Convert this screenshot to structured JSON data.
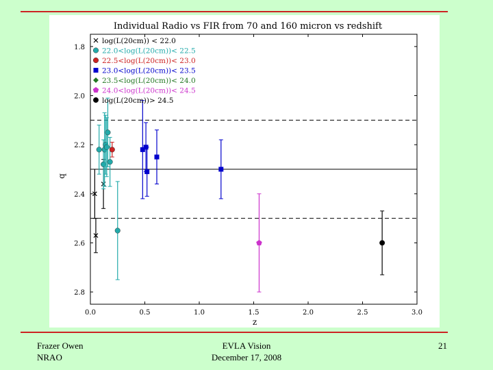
{
  "footer": {
    "author": "Frazer Owen",
    "org": "NRAO",
    "talk": "EVLA Vision",
    "date": "December 17, 2008",
    "page": "21"
  },
  "colors": {
    "rule": "#cc2222",
    "background": "#ccffcc"
  },
  "chart_data": {
    "type": "scatter",
    "title": "Individual Radio vs FIR from 70 and 160 micron vs redshift",
    "xlabel": "z",
    "ylabel": "q",
    "xlim": [
      0.0,
      3.0
    ],
    "ylim": [
      2.85,
      1.75
    ],
    "y_inverted": true,
    "xticks": [
      "0.0",
      "0.5",
      "1.0",
      "1.5",
      "2.0",
      "2.5",
      "3.0"
    ],
    "yticks": [
      "1.8",
      "2.0",
      "2.2",
      "2.4",
      "2.6",
      "2.8"
    ],
    "grid": false,
    "legend_position": "top-left",
    "reference_lines": [
      {
        "y": 2.3,
        "style": "solid"
      },
      {
        "y": 2.1,
        "style": "dashed"
      },
      {
        "y": 2.5,
        "style": "dashed"
      }
    ],
    "series": [
      {
        "name": "log(L(20cm)) < 22.0",
        "color": "#000000",
        "marker": "x",
        "points": [
          {
            "x": 0.04,
            "y": 2.4,
            "err": 0.1
          },
          {
            "x": 0.05,
            "y": 2.57,
            "err": 0.07
          },
          {
            "x": 0.12,
            "y": 2.36,
            "err": 0.1
          }
        ]
      },
      {
        "name": "22.0<log(L(20cm))< 22.5",
        "color": "#22aaaa",
        "marker": "circle",
        "points": [
          {
            "x": 0.08,
            "y": 2.22,
            "err": 0.1
          },
          {
            "x": 0.12,
            "y": 2.28,
            "err": 0.1
          },
          {
            "x": 0.13,
            "y": 2.22,
            "err": 0.15
          },
          {
            "x": 0.14,
            "y": 2.2,
            "err": 0.12
          },
          {
            "x": 0.15,
            "y": 2.21,
            "err": 0.12
          },
          {
            "x": 0.16,
            "y": 2.15,
            "err": 0.14
          },
          {
            "x": 0.18,
            "y": 2.27,
            "err": 0.1
          },
          {
            "x": 0.25,
            "y": 2.55,
            "err": 0.2
          }
        ]
      },
      {
        "name": "22.5<log(L(20cm))< 23.0",
        "color": "#cc2222",
        "marker": "circle",
        "points": [
          {
            "x": 0.2,
            "y": 2.22,
            "err": 0.03
          }
        ]
      },
      {
        "name": "23.0<log(L(20cm))< 23.5",
        "color": "#0000cc",
        "marker": "square",
        "points": [
          {
            "x": 0.48,
            "y": 2.22,
            "err": 0.2
          },
          {
            "x": 0.51,
            "y": 2.21,
            "err": 0.1
          },
          {
            "x": 0.52,
            "y": 2.31,
            "err": 0.1
          },
          {
            "x": 0.61,
            "y": 2.25,
            "err": 0.11
          },
          {
            "x": 1.2,
            "y": 2.3,
            "err": 0.12
          }
        ]
      },
      {
        "name": "23.5<log(L(20cm))< 24.0",
        "color": "#227722",
        "marker": "diamond",
        "points": []
      },
      {
        "name": "24.0<log(L(20cm))< 24.5",
        "color": "#cc33cc",
        "marker": "pentagon",
        "points": [
          {
            "x": 1.55,
            "y": 2.6,
            "err": 0.2
          }
        ]
      },
      {
        "name": "log(L(20cm))> 24.5",
        "color": "#000000",
        "marker": "circle",
        "points": [
          {
            "x": 2.68,
            "y": 2.6,
            "err": 0.13
          }
        ]
      }
    ]
  }
}
